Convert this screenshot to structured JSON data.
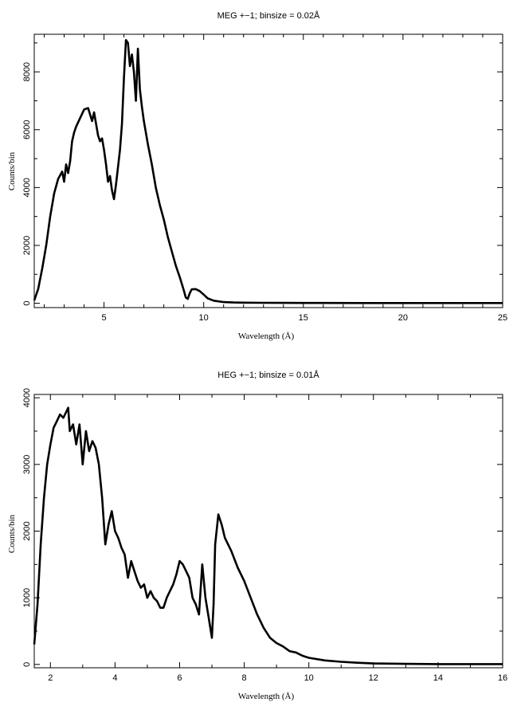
{
  "chart_data": [
    {
      "type": "line",
      "title": "MEG +−1; binsize = 0.02Å",
      "xlabel": "Wavelength (Å)",
      "ylabel": "Counts/bin",
      "xlim": [
        1.5,
        25
      ],
      "ylim": [
        -150,
        9300
      ],
      "xticks_major": [
        5,
        10,
        15,
        20,
        25
      ],
      "xticks_minor": [
        2,
        3,
        4,
        6,
        7,
        8,
        9,
        11,
        12,
        13,
        14,
        16,
        17,
        18,
        19,
        21,
        22,
        23,
        24
      ],
      "yticks_major": [
        0,
        2000,
        4000,
        6000,
        8000
      ],
      "yticks_minor": [
        1000,
        3000,
        5000,
        7000,
        9000
      ],
      "grid": false,
      "series": [
        {
          "x": [
            1.5,
            1.7,
            1.9,
            2.1,
            2.3,
            2.5,
            2.7,
            2.9,
            3.0,
            3.1,
            3.2,
            3.3,
            3.4,
            3.5,
            3.6,
            3.8,
            4.0,
            4.2,
            4.4,
            4.5,
            4.6,
            4.7,
            4.8,
            4.9,
            5.0,
            5.1,
            5.2,
            5.3,
            5.4,
            5.5,
            5.6,
            5.7,
            5.8,
            5.9,
            6.0,
            6.1,
            6.2,
            6.3,
            6.4,
            6.5,
            6.6,
            6.7,
            6.8,
            6.9,
            7.0,
            7.2,
            7.4,
            7.6,
            7.8,
            8.0,
            8.2,
            8.4,
            8.6,
            8.8,
            9.0,
            9.1,
            9.2,
            9.3,
            9.4,
            9.6,
            9.8,
            10.0,
            10.2,
            10.5,
            11.0,
            11.5,
            12.0,
            13.0,
            14.0,
            15.0,
            16.0,
            18.0,
            20.0,
            22.0,
            25.0
          ],
          "y": [
            100,
            500,
            1200,
            2000,
            3000,
            3800,
            4300,
            4550,
            4200,
            4800,
            4500,
            4900,
            5600,
            5900,
            6100,
            6400,
            6700,
            6750,
            6300,
            6600,
            6200,
            5800,
            5600,
            5700,
            5300,
            4800,
            4200,
            4400,
            3900,
            3600,
            4100,
            4700,
            5300,
            6200,
            7800,
            9100,
            9000,
            8200,
            8600,
            8000,
            7000,
            8800,
            7400,
            6800,
            6300,
            5500,
            4800,
            4000,
            3400,
            2900,
            2300,
            1800,
            1300,
            900,
            450,
            200,
            150,
            350,
            480,
            490,
            420,
            300,
            170,
            90,
            40,
            25,
            20,
            15,
            12,
            10,
            10,
            8,
            8,
            8,
            8
          ]
        }
      ]
    },
    {
      "type": "line",
      "title": "HEG +−1; binsize = 0.01Å",
      "xlabel": "Wavelength (Å)",
      "ylabel": "Counts/bin",
      "xlim": [
        1.5,
        16
      ],
      "ylim": [
        -50,
        4050
      ],
      "xticks_major": [
        2,
        4,
        6,
        8,
        10,
        12,
        14,
        16
      ],
      "xticks_minor": [
        3,
        5,
        7,
        9,
        11,
        13,
        15
      ],
      "yticks_major": [
        0,
        1000,
        2000,
        3000,
        4000
      ],
      "yticks_minor": [
        500,
        1500,
        2500,
        3500
      ],
      "grid": false,
      "series": [
        {
          "x": [
            1.5,
            1.6,
            1.7,
            1.8,
            1.9,
            2.0,
            2.1,
            2.2,
            2.3,
            2.4,
            2.5,
            2.55,
            2.6,
            2.7,
            2.8,
            2.9,
            3.0,
            3.1,
            3.2,
            3.3,
            3.4,
            3.5,
            3.6,
            3.7,
            3.8,
            3.9,
            4.0,
            4.1,
            4.2,
            4.3,
            4.4,
            4.5,
            4.6,
            4.7,
            4.8,
            4.9,
            5.0,
            5.1,
            5.2,
            5.3,
            5.4,
            5.5,
            5.6,
            5.7,
            5.8,
            5.9,
            6.0,
            6.1,
            6.2,
            6.3,
            6.4,
            6.5,
            6.6,
            6.7,
            6.8,
            6.9,
            7.0,
            7.05,
            7.1,
            7.2,
            7.3,
            7.4,
            7.6,
            7.8,
            8.0,
            8.2,
            8.4,
            8.6,
            8.8,
            9.0,
            9.2,
            9.4,
            9.6,
            9.8,
            10.0,
            10.5,
            11.0,
            11.5,
            12.0,
            13.0,
            14.0,
            15.0,
            16.0
          ],
          "y": [
            300,
            900,
            1800,
            2500,
            3000,
            3300,
            3550,
            3650,
            3750,
            3700,
            3800,
            3850,
            3500,
            3600,
            3300,
            3600,
            3000,
            3500,
            3200,
            3350,
            3250,
            3000,
            2500,
            1800,
            2100,
            2300,
            2000,
            1900,
            1750,
            1650,
            1300,
            1550,
            1400,
            1250,
            1150,
            1200,
            1000,
            1100,
            1000,
            950,
            850,
            850,
            1000,
            1100,
            1200,
            1350,
            1550,
            1500,
            1400,
            1300,
            1000,
            900,
            750,
            1500,
            1000,
            700,
            400,
            900,
            1800,
            2250,
            2100,
            1900,
            1700,
            1450,
            1250,
            1000,
            750,
            550,
            400,
            320,
            270,
            200,
            180,
            130,
            100,
            60,
            40,
            25,
            15,
            8,
            5,
            5,
            5
          ]
        }
      ]
    }
  ]
}
